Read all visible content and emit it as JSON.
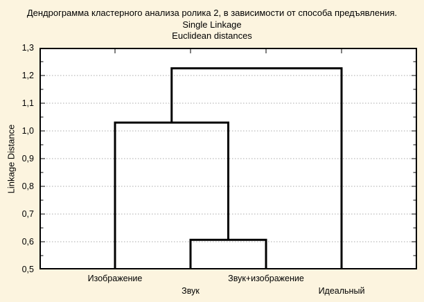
{
  "chart_data": {
    "type": "dendrogram",
    "title": "Дендрограмма кластерного анализа ролика 2, в зависимости от способа предъявления.",
    "subtitle1": "Single Linkage",
    "subtitle2": "Euclidean distances",
    "ylabel": "Linkage Distance",
    "ylim": [
      0.5,
      1.3
    ],
    "y_major_step": 0.1,
    "y_minor_step": 0.05,
    "y_major_ticks": [
      1.3,
      1.2,
      1.1,
      1.0,
      0.9,
      0.8,
      0.7,
      0.6,
      0.5
    ],
    "y_tick_labels": [
      "1,3",
      "1,2",
      "1,1",
      "1,0",
      "0,9",
      "0,8",
      "0,7",
      "0,6",
      "0,5"
    ],
    "grid": "horizontal dotted gridlines at each 0.1 major tick, minor ticks every 0.05 on left and right axes, leaf ticks on top and bottom axes",
    "legend": "none",
    "leaves": [
      {
        "label": "Изображение",
        "x": 0.2,
        "row": 0
      },
      {
        "label": "Звук",
        "x": 0.4,
        "row": 1
      },
      {
        "label": "Звук+изображение",
        "x": 0.6,
        "row": 0
      },
      {
        "label": "Идеальный",
        "x": 0.8,
        "row": 1
      }
    ],
    "links": [
      {
        "joins": [
          "Звук",
          "Звук+изображение"
        ],
        "height": 0.607,
        "x1": 0.4,
        "base1": 0.5,
        "x2": 0.6,
        "base2": 0.5
      },
      {
        "joins": [
          "Изображение",
          "{Звук, Звук+изображение}"
        ],
        "height": 1.03,
        "x1": 0.2,
        "base1": 0.5,
        "x2": 0.5,
        "base2": 0.607
      },
      {
        "joins": [
          "{Изображение, Звук, Звук+изображение}",
          "Идеальный"
        ],
        "height": 1.226,
        "x1": 0.35,
        "base1": 1.03,
        "x2": 0.8,
        "base2": 0.5
      }
    ],
    "colors": {
      "background": "#fcf4df",
      "plot_background": "#ffffff",
      "line": "#000000",
      "grid": "#a8a8a8",
      "text": "#000000"
    }
  }
}
